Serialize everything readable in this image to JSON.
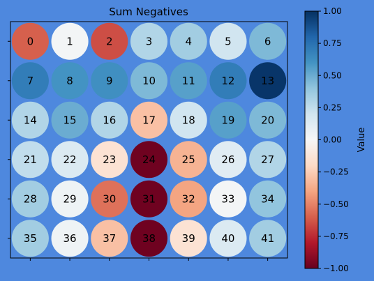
{
  "chart_data": {
    "type": "heatmap",
    "title": "Sum Negatives",
    "rows": 6,
    "cols": 7,
    "labels": [
      [
        0,
        1,
        2,
        3,
        4,
        5,
        6
      ],
      [
        7,
        8,
        9,
        10,
        11,
        12,
        13
      ],
      [
        14,
        15,
        16,
        17,
        18,
        19,
        20
      ],
      [
        21,
        22,
        23,
        24,
        25,
        26,
        27
      ],
      [
        28,
        29,
        30,
        31,
        32,
        33,
        34
      ],
      [
        35,
        36,
        37,
        38,
        39,
        40,
        41
      ]
    ],
    "values": [
      [
        -0.6,
        0.02,
        -0.65,
        0.3,
        0.35,
        0.2,
        0.45
      ],
      [
        0.7,
        0.6,
        0.62,
        0.45,
        0.55,
        0.7,
        0.98
      ],
      [
        0.3,
        0.5,
        0.3,
        -0.3,
        0.2,
        0.55,
        0.45
      ],
      [
        0.25,
        0.15,
        -0.15,
        -0.98,
        -0.35,
        0.12,
        0.3
      ],
      [
        0.35,
        0.05,
        -0.55,
        -0.98,
        -0.4,
        0.02,
        0.4
      ],
      [
        0.35,
        0.05,
        -0.3,
        -0.98,
        -0.15,
        0.15,
        0.35
      ]
    ],
    "colorbar": {
      "label": "Value",
      "vmin": -1.0,
      "vmax": 1.0,
      "ticks": [
        "1.00",
        "0.75",
        "0.50",
        "0.25",
        "0.00",
        "−0.25",
        "−0.50",
        "−0.75",
        "−1.00"
      ],
      "colormap": "RdBu"
    },
    "colors": {
      "background": "#4e88de",
      "plot_background": "#4e88de"
    },
    "grid": false
  }
}
